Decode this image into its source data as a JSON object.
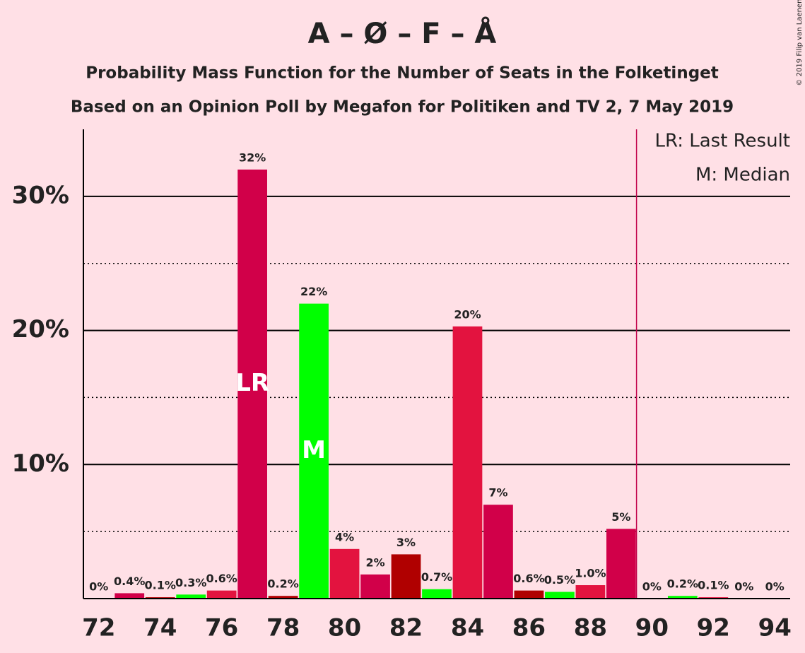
{
  "chart_data": {
    "type": "bar",
    "title": "A – Ø – F – Å",
    "subtitle": "Probability Mass Function for the Number of Seats in the Folketinget",
    "subtitle2": "Based on an Opinion Poll by Megafon for Politiken and TV 2, 7 May 2019",
    "copyright": "© 2019 Filip van Laenen",
    "x": [
      72,
      73,
      74,
      75,
      76,
      77,
      78,
      79,
      80,
      81,
      82,
      83,
      84,
      85,
      86,
      87,
      88,
      89,
      90,
      91,
      92,
      93,
      94
    ],
    "values": [
      0,
      0.4,
      0.1,
      0.3,
      0.6,
      32,
      0.2,
      22,
      3.7,
      1.8,
      3.3,
      0.7,
      20.3,
      7,
      0.6,
      0.5,
      1.0,
      5.2,
      0,
      0.2,
      0.1,
      0,
      0
    ],
    "value_labels": [
      "0%",
      "0.4%",
      "0.1%",
      "0.3%",
      "0.6%",
      "32%",
      "0.2%",
      "22%",
      "4%",
      "2%",
      "3%",
      "0.7%",
      "20%",
      "7%",
      "0.6%",
      "0.5%",
      "1.0%",
      "5%",
      "0%",
      "0.2%",
      "0.1%",
      "0%",
      "0%"
    ],
    "colors": [
      "#e3133f",
      "#d10049",
      "#b00000",
      "#00ff00",
      "#e3133f",
      "#d10049",
      "#b00000",
      "#00ff00",
      "#e3133f",
      "#d10049",
      "#b00000",
      "#00ff00",
      "#e3133f",
      "#d10049",
      "#b00000",
      "#00ff00",
      "#e3133f",
      "#d10049",
      "#b00000",
      "#00ff00",
      "#e3133f",
      "#d10049",
      "#b00000"
    ],
    "xlim": [
      71.5,
      94.5
    ],
    "xticks": [
      72,
      74,
      76,
      78,
      80,
      82,
      84,
      86,
      88,
      90,
      92,
      94
    ],
    "ylim": [
      0,
      35
    ],
    "yticks": [
      {
        "value": 10,
        "label": "10%"
      },
      {
        "value": 20,
        "label": "20%"
      },
      {
        "value": 30,
        "label": "30%"
      }
    ],
    "minor_gridlines": [
      5,
      15,
      25
    ],
    "annotations": [
      {
        "x": 77,
        "label": "LR"
      },
      {
        "x": 79,
        "label": "M"
      }
    ],
    "majority_line": {
      "x": 89.5,
      "color": "#c2004a"
    },
    "legend": [
      "LR: Last Result",
      "M: Median"
    ]
  }
}
